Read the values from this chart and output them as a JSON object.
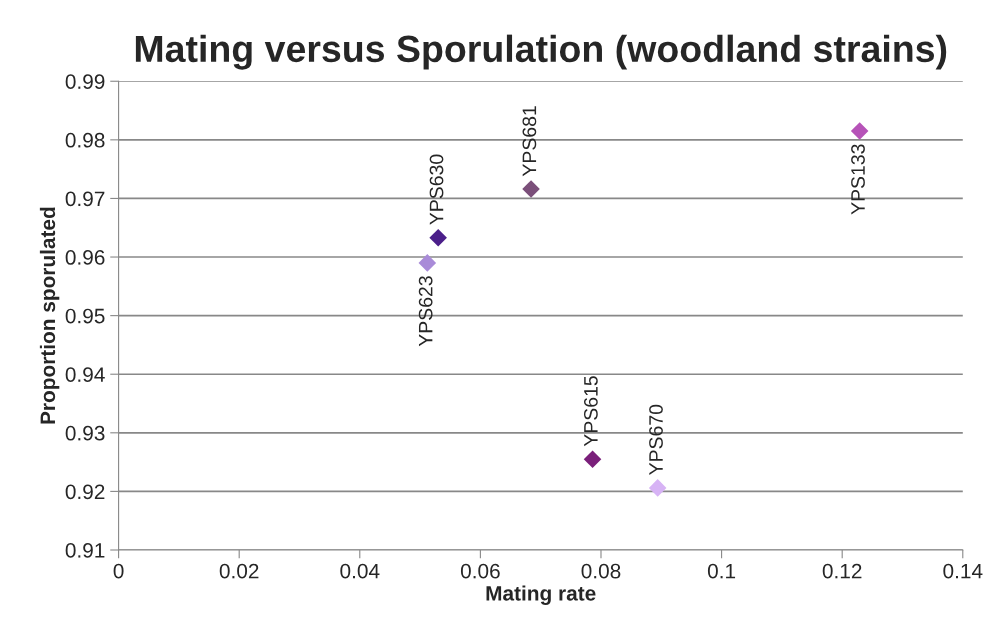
{
  "chart_data": {
    "type": "scatter",
    "title": "Mating versus Sporulation (woodland strains)",
    "xlabel": "Mating rate",
    "ylabel": "Proportion sporulated",
    "x": [
      0.0512,
      0.053,
      0.0684,
      0.0786,
      0.0894,
      0.1229
    ],
    "values": [
      0.959,
      0.9633,
      0.9716,
      0.9255,
      0.9206,
      0.9815
    ],
    "colors": [
      "#a98bd8",
      "#4b1f8a",
      "#7b4f7a",
      "#7a1f7a",
      "#d7b3f5",
      "#b653b8"
    ],
    "annotations": [
      {
        "text": "YPS623",
        "x": 0.0512,
        "y": 0.959
      },
      {
        "text": "YPS630",
        "x": 0.053,
        "y": 0.9633
      },
      {
        "text": "YPS681",
        "x": 0.0684,
        "y": 0.9716
      },
      {
        "text": "YPS615",
        "x": 0.0786,
        "y": 0.9255
      },
      {
        "text": "YPS670",
        "x": 0.0894,
        "y": 0.9206
      },
      {
        "text": "YPS133",
        "x": 0.1229,
        "y": 0.9815
      }
    ],
    "xlim": [
      0,
      0.14
    ],
    "xticks": [
      0,
      0.02,
      0.04,
      0.06,
      0.08,
      0.1,
      0.12,
      0.14
    ],
    "ylim": [
      0.91,
      0.99
    ],
    "yticks": [
      0.91,
      0.92,
      0.93,
      0.94,
      0.95,
      0.96,
      0.97,
      0.98,
      0.99
    ],
    "grid": "y",
    "marker": "diamond",
    "legend": false
  }
}
